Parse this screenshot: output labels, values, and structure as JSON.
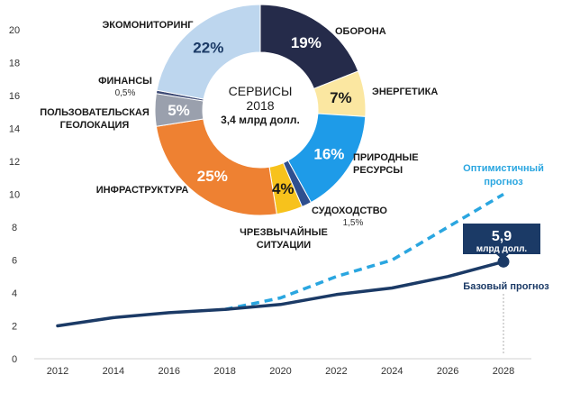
{
  "chart_data": [
    {
      "type": "line",
      "x": [
        "2012",
        "2014",
        "2016",
        "2018",
        "2020",
        "2022",
        "2024",
        "2026",
        "2028"
      ],
      "ylim": [
        0,
        20
      ],
      "yticks": [
        "0",
        "2",
        "4",
        "6",
        "8",
        "10",
        "12",
        "14",
        "16",
        "18",
        "20"
      ],
      "grid": false,
      "series": [
        {
          "name": "Базовый прогноз",
          "style": "solid",
          "color": "#1b3a66",
          "points": [
            [
              2012,
              2.0
            ],
            [
              2014,
              2.5
            ],
            [
              2016,
              2.8
            ],
            [
              2018,
              3.0
            ],
            [
              2020,
              3.3
            ],
            [
              2022,
              3.9
            ],
            [
              2024,
              4.3
            ],
            [
              2026,
              5.0
            ],
            [
              2028,
              5.9
            ]
          ]
        },
        {
          "name": "Оптимистичный прогноз",
          "style": "dashed",
          "color": "#2aa6e0",
          "points": [
            [
              2018,
              3.0
            ],
            [
              2020,
              3.7
            ],
            [
              2022,
              5.0
            ],
            [
              2024,
              6.0
            ],
            [
              2028,
              10.0
            ]
          ]
        }
      ],
      "callout": {
        "value": "5,9",
        "unit": "млрд долл."
      },
      "optimistic_label": [
        "Оптимистичный",
        "прогноз"
      ],
      "base_label": "Базовый прогноз"
    },
    {
      "type": "pie",
      "center_text": [
        "СЕРВИСЫ",
        "2018",
        "3,4 млрд долл."
      ],
      "slices": [
        {
          "name": "ОБОРОНА",
          "value": 19,
          "pct_label": "19%",
          "color": "#252b4a",
          "pct_color": "#ffffff"
        },
        {
          "name": "ЭНЕРГЕТИКА",
          "value": 7,
          "pct_label": "7%",
          "color": "#fbe7a1",
          "pct_color": "#1a1a1a"
        },
        {
          "name": "ПРИРОДНЫЕ РЕСУРСЫ",
          "value": 16,
          "pct_label": "16%",
          "color": "#1e9be8",
          "pct_color": "#ffffff"
        },
        {
          "name": "СУДОХОДСТВО",
          "value": 1.5,
          "pct_label": "",
          "sub": "1,5%",
          "color": "#2f4f8f",
          "pct_color": "#ffffff"
        },
        {
          "name": "ЧРЕЗВЫЧАЙНЫЕ СИТУАЦИИ",
          "value": 4,
          "pct_label": "4%",
          "color": "#f7c21c",
          "pct_color": "#1a1a1a"
        },
        {
          "name": "ИНФРАСТРУКТУРА",
          "value": 25,
          "pct_label": "25%",
          "color": "#ee8132",
          "pct_color": "#ffffff"
        },
        {
          "name": "ПОЛЬЗОВАТЕЛЬСКАЯ ГЕОЛОКАЦИЯ",
          "value": 5,
          "pct_label": "5%",
          "color": "#9aa0ad",
          "pct_color": "#ffffff"
        },
        {
          "name": "ФИНАНСЫ",
          "value": 0.5,
          "pct_label": "",
          "sub": "0,5%",
          "color": "#3d4a75",
          "pct_color": "#ffffff"
        },
        {
          "name": "ЭКОМОНИТОРИНГ",
          "value": 22,
          "pct_label": "22%",
          "color": "#bdd6ee",
          "pct_color": "#1b3a66"
        }
      ]
    }
  ]
}
